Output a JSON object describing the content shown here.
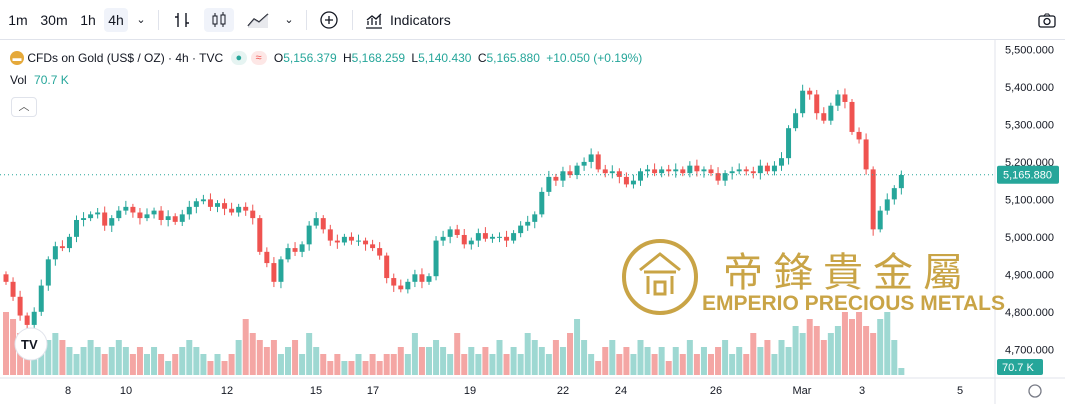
{
  "toolbar": {
    "timeframes": [
      "1m",
      "30m",
      "1h",
      "4h"
    ],
    "active_timeframe": "4h",
    "indicators_label": "Indicators"
  },
  "legend": {
    "symbol": "CFDs on Gold (US$ / OZ) · 4h · TVC",
    "o_label": "O",
    "o_value": "5,156.379",
    "h_label": "H",
    "h_value": "5,168.259",
    "l_label": "L",
    "l_value": "5,140.430",
    "c_label": "C",
    "c_value": "5,165.880",
    "change": "+10.050 (+0.19%)",
    "vol_label": "Vol",
    "vol_value": "70.7 K"
  },
  "price_axis": {
    "ticks": [
      "5,500.000",
      "5,400.000",
      "5,300.000",
      "5,200.000",
      "5,100.000",
      "5,000.000",
      "4,900.000",
      "4,800.000",
      "4,700.000"
    ],
    "last_price": "5,165.880",
    "last_volume": "70.7 K"
  },
  "time_axis": {
    "labels": [
      "8",
      "10",
      "12",
      "15",
      "17",
      "19",
      "22",
      "24",
      "26",
      "Mar",
      "3",
      "5"
    ]
  },
  "watermark": {
    "chinese": "帝鋒貴金屬",
    "english": "EMPERIO PRECIOUS METALS"
  },
  "colors": {
    "up": "#26a69a",
    "down": "#ef5350",
    "up_vol": "#9ed8d2",
    "down_vol": "#f4a6a4",
    "gold": "#c9a446",
    "axis_text": "#131722"
  },
  "chart_data": {
    "type": "candlestick",
    "y_range": [
      4650,
      5520
    ],
    "ohlc_close_points": [
      [
        0,
        4880
      ],
      [
        1,
        4840
      ],
      [
        2,
        4790
      ],
      [
        3,
        4765
      ],
      [
        4,
        4800
      ],
      [
        5,
        4870
      ],
      [
        6,
        4940
      ],
      [
        7,
        4975
      ],
      [
        8,
        4970
      ],
      [
        9,
        5000
      ],
      [
        10,
        5045
      ],
      [
        11,
        5050
      ],
      [
        12,
        5060
      ],
      [
        13,
        5065
      ],
      [
        14,
        5030
      ],
      [
        15,
        5050
      ],
      [
        16,
        5070
      ],
      [
        17,
        5080
      ],
      [
        18,
        5065
      ],
      [
        19,
        5050
      ],
      [
        20,
        5060
      ],
      [
        21,
        5070
      ],
      [
        22,
        5045
      ],
      [
        23,
        5055
      ],
      [
        24,
        5040
      ],
      [
        25,
        5060
      ],
      [
        26,
        5080
      ],
      [
        27,
        5095
      ],
      [
        28,
        5100
      ],
      [
        29,
        5080
      ],
      [
        30,
        5090
      ],
      [
        31,
        5075
      ],
      [
        32,
        5065
      ],
      [
        33,
        5080
      ],
      [
        34,
        5070
      ],
      [
        35,
        5050
      ],
      [
        36,
        4960
      ],
      [
        37,
        4930
      ],
      [
        38,
        4880
      ],
      [
        39,
        4940
      ],
      [
        40,
        4970
      ],
      [
        41,
        4960
      ],
      [
        42,
        4980
      ],
      [
        43,
        5030
      ],
      [
        44,
        5050
      ],
      [
        45,
        5020
      ],
      [
        46,
        4990
      ],
      [
        47,
        4985
      ],
      [
        48,
        5000
      ],
      [
        49,
        4990
      ],
      [
        50,
        4990
      ],
      [
        51,
        4980
      ],
      [
        52,
        4970
      ],
      [
        53,
        4950
      ],
      [
        54,
        4890
      ],
      [
        55,
        4870
      ],
      [
        56,
        4860
      ],
      [
        57,
        4880
      ],
      [
        58,
        4900
      ],
      [
        59,
        4880
      ],
      [
        60,
        4895
      ],
      [
        61,
        4990
      ],
      [
        62,
        5000
      ],
      [
        63,
        5020
      ],
      [
        64,
        5005
      ],
      [
        65,
        4980
      ],
      [
        66,
        4990
      ],
      [
        67,
        5010
      ],
      [
        68,
        4995
      ],
      [
        69,
        5000
      ],
      [
        70,
        5000
      ],
      [
        71,
        4990
      ],
      [
        72,
        5010
      ],
      [
        73,
        5030
      ],
      [
        74,
        5040
      ],
      [
        75,
        5060
      ],
      [
        76,
        5120
      ],
      [
        77,
        5160
      ],
      [
        78,
        5150
      ],
      [
        79,
        5175
      ],
      [
        80,
        5165
      ],
      [
        81,
        5190
      ],
      [
        82,
        5200
      ],
      [
        83,
        5220
      ],
      [
        84,
        5180
      ],
      [
        85,
        5170
      ],
      [
        86,
        5175
      ],
      [
        87,
        5160
      ],
      [
        88,
        5140
      ],
      [
        89,
        5150
      ],
      [
        90,
        5175
      ],
      [
        91,
        5180
      ],
      [
        92,
        5170
      ],
      [
        93,
        5180
      ],
      [
        94,
        5175
      ],
      [
        95,
        5180
      ],
      [
        96,
        5170
      ],
      [
        97,
        5190
      ],
      [
        98,
        5175
      ],
      [
        99,
        5180
      ],
      [
        100,
        5170
      ],
      [
        101,
        5150
      ],
      [
        102,
        5170
      ],
      [
        103,
        5175
      ],
      [
        104,
        5180
      ],
      [
        105,
        5175
      ],
      [
        106,
        5170
      ],
      [
        107,
        5190
      ],
      [
        108,
        5175
      ],
      [
        109,
        5190
      ],
      [
        110,
        5210
      ],
      [
        111,
        5290
      ],
      [
        112,
        5330
      ],
      [
        113,
        5390
      ],
      [
        114,
        5380
      ],
      [
        115,
        5330
      ],
      [
        116,
        5310
      ],
      [
        117,
        5350
      ],
      [
        118,
        5380
      ],
      [
        119,
        5360
      ],
      [
        120,
        5280
      ],
      [
        121,
        5260
      ],
      [
        122,
        5180
      ],
      [
        123,
        5020
      ],
      [
        124,
        5070
      ],
      [
        125,
        5100
      ],
      [
        126,
        5130
      ],
      [
        127,
        5165
      ]
    ],
    "volume_relative": [
      0.9,
      0.8,
      0.6,
      0.5,
      0.5,
      0.4,
      0.5,
      0.6,
      0.5,
      0.4,
      0.3,
      0.4,
      0.5,
      0.4,
      0.3,
      0.4,
      0.5,
      0.4,
      0.3,
      0.4,
      0.3,
      0.4,
      0.3,
      0.2,
      0.3,
      0.4,
      0.5,
      0.4,
      0.3,
      0.2,
      0.3,
      0.2,
      0.3,
      0.5,
      0.8,
      0.6,
      0.5,
      0.4,
      0.5,
      0.3,
      0.4,
      0.5,
      0.3,
      0.6,
      0.4,
      0.3,
      0.2,
      0.3,
      0.2,
      0.2,
      0.3,
      0.2,
      0.3,
      0.2,
      0.3,
      0.3,
      0.4,
      0.3,
      0.6,
      0.4,
      0.4,
      0.5,
      0.4,
      0.3,
      0.6,
      0.3,
      0.4,
      0.3,
      0.4,
      0.3,
      0.5,
      0.3,
      0.4,
      0.3,
      0.6,
      0.5,
      0.4,
      0.3,
      0.5,
      0.4,
      0.6,
      0.8,
      0.5,
      0.3,
      0.2,
      0.4,
      0.5,
      0.3,
      0.4,
      0.3,
      0.5,
      0.4,
      0.3,
      0.4,
      0.2,
      0.4,
      0.3,
      0.5,
      0.3,
      0.4,
      0.3,
      0.4,
      0.5,
      0.3,
      0.4,
      0.3,
      0.6,
      0.4,
      0.5,
      0.3,
      0.5,
      0.4,
      0.7,
      0.6,
      0.8,
      0.7,
      0.5,
      0.6,
      0.7,
      0.9,
      0.8,
      0.9,
      0.7,
      0.6,
      0.8,
      0.9,
      0.5,
      0.1
    ]
  }
}
